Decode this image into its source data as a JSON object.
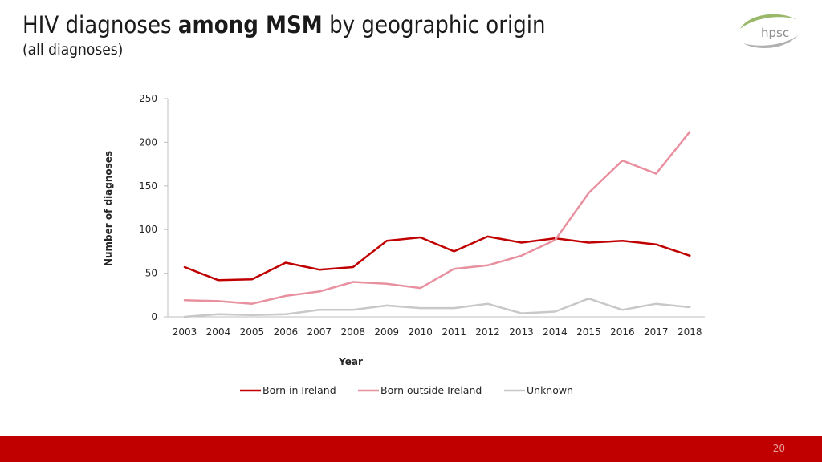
{
  "header": {
    "title_part1": "HIV diagnoses ",
    "title_bold": "among MSM",
    "title_part2": " by geographic origin",
    "subtitle": "(all diagnoses)"
  },
  "logo": {
    "text": "hpsc"
  },
  "chart_data": {
    "type": "line",
    "xlabel": "Year",
    "ylabel": "Number of diagnoses",
    "ylim": [
      0,
      250
    ],
    "yticks": [
      0,
      50,
      100,
      150,
      200,
      250
    ],
    "categories": [
      "2003",
      "2004",
      "2005",
      "2006",
      "2007",
      "2008",
      "2009",
      "2010",
      "2011",
      "2012",
      "2013",
      "2014",
      "2015",
      "2016",
      "2017",
      "2018"
    ],
    "series": [
      {
        "name": "Born in Ireland",
        "color": "#c00000",
        "values": [
          57,
          42,
          43,
          62,
          54,
          57,
          87,
          91,
          75,
          92,
          85,
          90,
          85,
          87,
          83,
          70
        ]
      },
      {
        "name": "Born outside Ireland",
        "color": "#e8909f",
        "values": [
          19,
          18,
          15,
          24,
          29,
          40,
          38,
          33,
          55,
          59,
          70,
          88,
          142,
          179,
          164,
          212
        ]
      },
      {
        "name": "Unknown",
        "color": "#c8c8c8",
        "values": [
          0,
          3,
          2,
          3,
          8,
          8,
          13,
          10,
          10,
          15,
          4,
          6,
          21,
          8,
          15,
          11
        ]
      }
    ],
    "grid": false,
    "legend": "bottom"
  },
  "footer": {
    "page_number": "20"
  }
}
